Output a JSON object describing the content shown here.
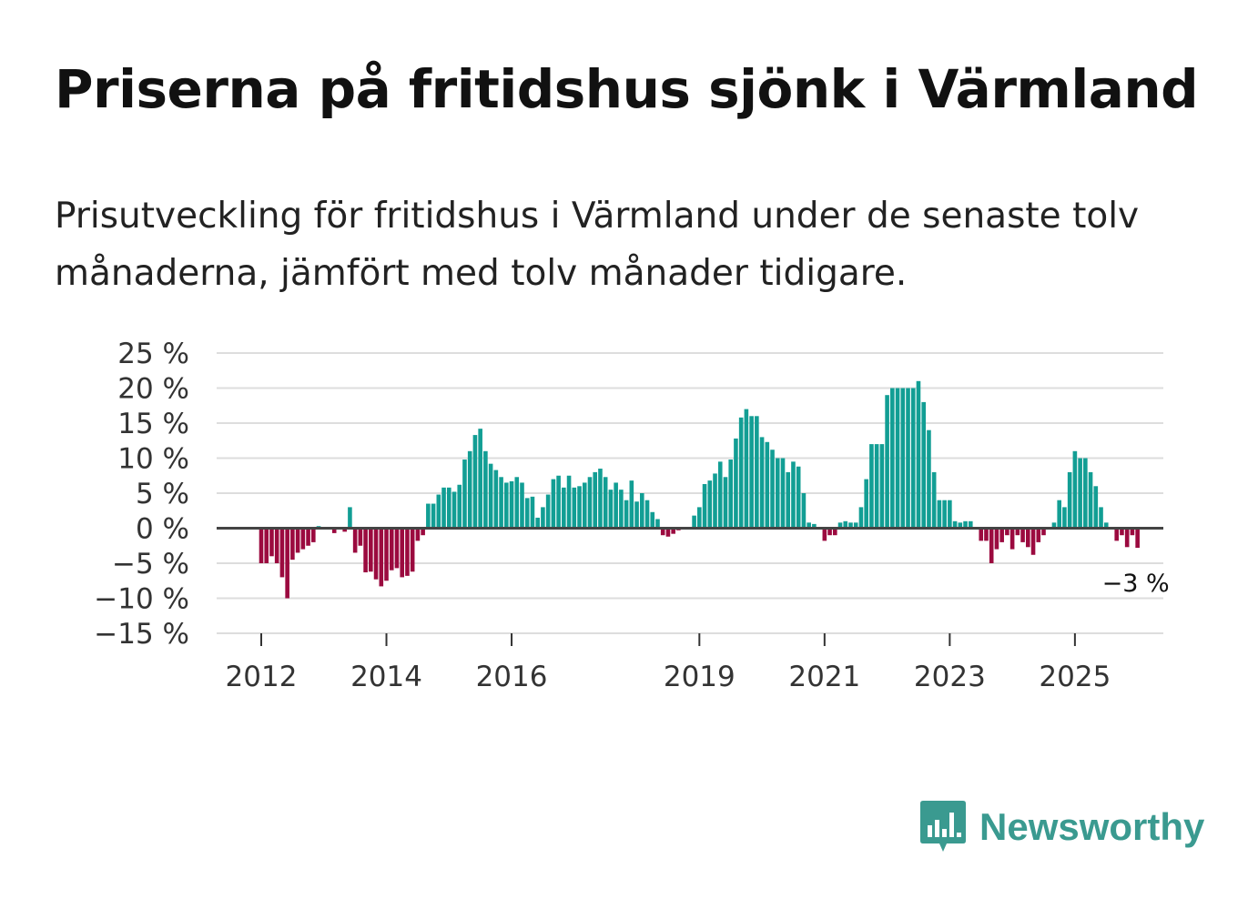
{
  "title": "Priserna på fritidshus sjönk i Värmland",
  "subtitle": "Prisutveckling för fritidshus i Värmland under de senaste tolv månaderna, jämfört med tolv månader tidigare.",
  "brand": {
    "name": "Newsworthy",
    "color": "#3a9a90"
  },
  "colors": {
    "positive": "#129e94",
    "negative": "#9b0a3f",
    "zero_line": "#444444",
    "grid": "#dddddd"
  },
  "chart_data": {
    "type": "bar",
    "title": "Priserna på fritidshus sjönk i Värmland",
    "ylabel": "",
    "xlabel": "",
    "ylim": [
      -15,
      25
    ],
    "y_ticks": [
      25,
      20,
      15,
      10,
      5,
      0,
      -5,
      -10,
      -15
    ],
    "y_tick_labels": [
      "25 %",
      "20 %",
      "15 %",
      "10 %",
      "5 %",
      "0 %",
      "−5 %",
      "−10 %",
      "−15 %"
    ],
    "x_tick_labels": [
      "2012",
      "2014",
      "2016",
      "2019",
      "2021",
      "2023",
      "2025"
    ],
    "x_tick_index": [
      0,
      24,
      48,
      84,
      108,
      132,
      156
    ],
    "start": "2012-01",
    "frequency": "monthly",
    "end_label": "−3 %",
    "series": [
      {
        "name": "Prisutveckling",
        "values": [
          -5,
          -5,
          -4,
          -5,
          -7,
          -10,
          -4.5,
          -3.5,
          -3,
          -2.5,
          -2,
          0.3,
          0,
          0,
          -0.7,
          0,
          -0.5,
          3,
          -3.5,
          -2.5,
          -6.3,
          -6.2,
          -7.3,
          -8.3,
          -7.5,
          -6,
          -5.7,
          -7,
          -6.8,
          -6.2,
          -1.8,
          -1,
          3.5,
          3.5,
          4.8,
          5.8,
          5.8,
          5.2,
          6.2,
          9.8,
          11,
          13.3,
          14.2,
          11,
          9.2,
          8.3,
          7.3,
          6.5,
          6.7,
          7.3,
          6.5,
          4.3,
          4.5,
          1.5,
          3,
          4.8,
          7,
          7.5,
          5.8,
          7.5,
          5.8,
          6,
          6.5,
          7.3,
          8,
          8.5,
          7.3,
          5.5,
          6.5,
          5.5,
          4,
          6.8,
          3.8,
          5,
          4,
          2.3,
          1.3,
          -1,
          -1.2,
          -0.8,
          -0.3,
          0,
          0,
          1.8,
          3,
          6.3,
          6.8,
          7.8,
          9.5,
          7.3,
          9.8,
          12.8,
          15.8,
          17,
          16,
          16,
          13,
          12.3,
          11.2,
          10,
          10,
          8,
          9.5,
          8.8,
          5,
          0.8,
          0.6,
          0,
          -1.8,
          -1,
          -1,
          0.8,
          1,
          0.8,
          0.8,
          3,
          7,
          12,
          12,
          12,
          19,
          20,
          20,
          20,
          20,
          20,
          21,
          18,
          14,
          8,
          4,
          4,
          4,
          1,
          0.8,
          1,
          1,
          0,
          -1.8,
          -1.8,
          -5,
          -3,
          -2,
          -1,
          -3,
          -1,
          -2,
          -2.7,
          -3.8,
          -2,
          -1,
          0,
          0.8,
          4,
          3,
          8,
          11,
          10,
          10,
          8,
          6,
          3,
          0.8,
          0,
          -1.8,
          -1,
          -2.7,
          -1,
          -2.8
        ]
      }
    ]
  }
}
